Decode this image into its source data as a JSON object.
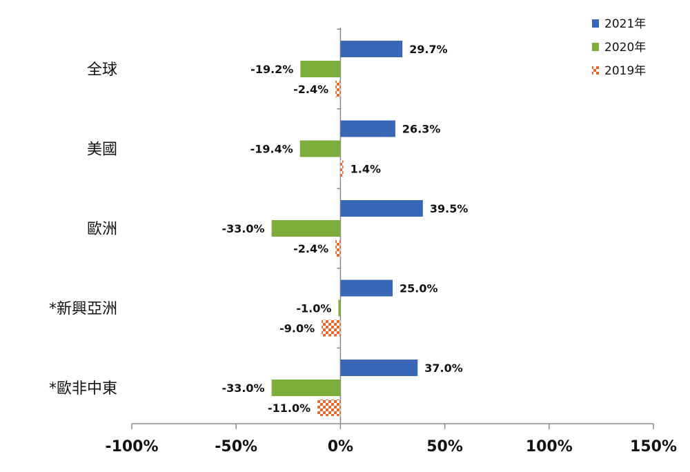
{
  "chart_data": {
    "type": "bar",
    "orientation": "horizontal",
    "categories": [
      "全球",
      "美國",
      "歐洲",
      "*新興亞洲",
      "*歐非中東"
    ],
    "series": [
      {
        "name": "2021年",
        "values": [
          29.7,
          26.3,
          39.5,
          25.0,
          37.0
        ],
        "labels": [
          "29.7%",
          "26.3%",
          "39.5%",
          "25.0%",
          "37.0%"
        ],
        "color": "#3a67b5",
        "pattern": "solid"
      },
      {
        "name": "2020年",
        "values": [
          -19.2,
          -19.4,
          -33.0,
          -1.0,
          -33.0
        ],
        "labels": [
          "-19.2%",
          "-19.4%",
          "-33.0%",
          "-1.0%",
          "-33.0%"
        ],
        "color": "#7dae3c",
        "pattern": "solid"
      },
      {
        "name": "2019年",
        "values": [
          -2.4,
          1.4,
          -2.4,
          -9.0,
          -11.0
        ],
        "labels": [
          "-2.4%",
          "1.4%",
          "-2.4%",
          "-9.0%",
          "-11.0%"
        ],
        "color": "#e8662a",
        "pattern": "checker"
      }
    ],
    "xlim": [
      -100,
      150
    ],
    "xticks": [
      -100,
      -50,
      0,
      50,
      100,
      150
    ],
    "xtick_labels": [
      "-100%",
      "-50%",
      "0%",
      "50%",
      "100%",
      "150%"
    ],
    "legend_position": "top-right",
    "grid": false
  }
}
